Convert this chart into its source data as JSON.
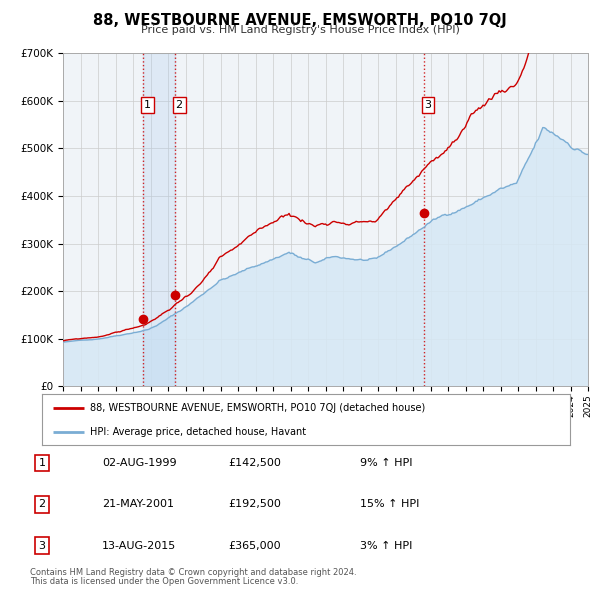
{
  "title": "88, WESTBOURNE AVENUE, EMSWORTH, PO10 7QJ",
  "subtitle": "Price paid vs. HM Land Registry's House Price Index (HPI)",
  "xmin": 1995,
  "xmax": 2025,
  "ymin": 0,
  "ymax": 700000,
  "yticks": [
    0,
    100000,
    200000,
    300000,
    400000,
    500000,
    600000,
    700000
  ],
  "ytick_labels": [
    "£0",
    "£100K",
    "£200K",
    "£300K",
    "£400K",
    "£500K",
    "£600K",
    "£700K"
  ],
  "sale_color": "#cc0000",
  "hpi_color": "#7aadd4",
  "hpi_fill_color": "#d6e8f5",
  "vline_color": "#cc0000",
  "grid_color": "#cccccc",
  "background_color": "#ffffff",
  "plot_bg_color": "#f0f4f8",
  "sales": [
    {
      "date_num": 1999.583,
      "price": 142500,
      "label": "1"
    },
    {
      "date_num": 2001.388,
      "price": 192500,
      "label": "2"
    },
    {
      "date_num": 2015.617,
      "price": 365000,
      "label": "3"
    }
  ],
  "legend_line1": "88, WESTBOURNE AVENUE, EMSWORTH, PO10 7QJ (detached house)",
  "legend_line2": "HPI: Average price, detached house, Havant",
  "table_rows": [
    {
      "num": "1",
      "date": "02-AUG-1999",
      "price": "£142,500",
      "change": "9% ↑ HPI"
    },
    {
      "num": "2",
      "date": "21-MAY-2001",
      "price": "£192,500",
      "change": "15% ↑ HPI"
    },
    {
      "num": "3",
      "date": "13-AUG-2015",
      "price": "£365,000",
      "change": "3% ↑ HPI"
    }
  ],
  "footnote1": "Contains HM Land Registry data © Crown copyright and database right 2024.",
  "footnote2": "This data is licensed under the Open Government Licence v3.0."
}
